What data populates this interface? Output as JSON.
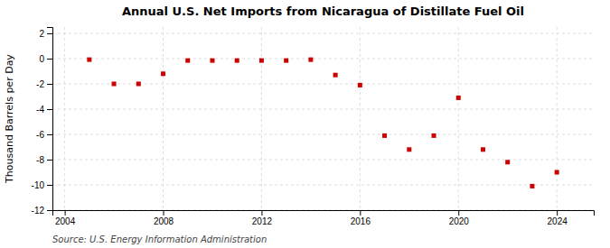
{
  "chart_data": {
    "type": "scatter",
    "title": "Annual U.S. Net Imports from Nicaragua of Distillate Fuel Oil",
    "ylabel": "Thousand Barrels per Day",
    "annotations": [
      "Source: U.S. Energy Information Administration"
    ],
    "x": [
      2005,
      2006,
      2007,
      2008,
      2009,
      2010,
      2011,
      2012,
      2013,
      2014,
      2015,
      2016,
      2017,
      2018,
      2019,
      2020,
      2021,
      2022,
      2023,
      2024
    ],
    "values": [
      -0.08,
      -2.0,
      -2.0,
      -1.2,
      -0.15,
      -0.15,
      -0.15,
      -0.15,
      -0.15,
      -0.08,
      -1.3,
      -2.1,
      -6.1,
      -7.2,
      -6.1,
      -3.1,
      -7.2,
      -8.2,
      -10.1,
      -9.0
    ],
    "color": "#cc0000",
    "marker": "square",
    "xlim": [
      2003.5,
      2025.5
    ],
    "ylim": [
      -12,
      2.5
    ],
    "xticks": [
      2004,
      2008,
      2012,
      2016,
      2020,
      2024
    ],
    "yticks": [
      2,
      0,
      -2,
      -4,
      -6,
      -8,
      -10,
      -12
    ],
    "grid": true
  }
}
